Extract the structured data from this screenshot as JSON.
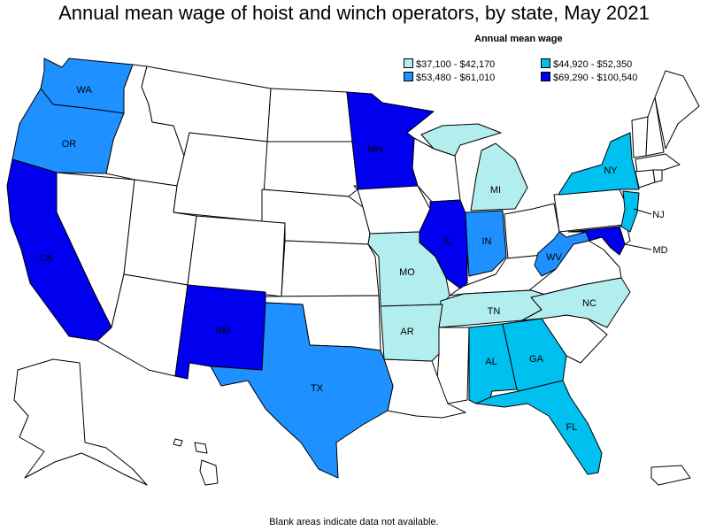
{
  "title": "Annual mean wage of hoist and winch operators, by state, May 2021",
  "legend": {
    "title": "Annual mean wage",
    "items": [
      {
        "label": "$37,100 - $42,170",
        "color": "#b2eeee"
      },
      {
        "label": "$44,920 - $52,350",
        "color": "#00c0ef"
      },
      {
        "label": "$53,480 - $61,010",
        "color": "#1e90ff"
      },
      {
        "label": "$69,290 - $100,540",
        "color": "#0000ee"
      }
    ]
  },
  "footnote": "Blank areas indicate data not available.",
  "colors": {
    "no_data": "#ffffff",
    "tier1": "#b2eeee",
    "tier2": "#00c0ef",
    "tier3": "#1e90ff",
    "tier4": "#0000ee"
  },
  "states": {
    "WA": {
      "label": "WA",
      "tier": 3
    },
    "OR": {
      "label": "OR",
      "tier": 3
    },
    "CA": {
      "label": "CA",
      "tier": 4
    },
    "MN": {
      "label": "MN",
      "tier": 4
    },
    "MI": {
      "label": "MI",
      "tier": 1
    },
    "NY": {
      "label": "NY",
      "tier": 2
    },
    "NJ": {
      "label": "NJ",
      "tier": 2
    },
    "IL": {
      "label": "IL",
      "tier": 4
    },
    "IN": {
      "label": "IN",
      "tier": 3
    },
    "WV": {
      "label": "WV",
      "tier": 3
    },
    "MD": {
      "label": "MD",
      "tier": 4
    },
    "MO": {
      "label": "MO",
      "tier": 1
    },
    "NM": {
      "label": "NM",
      "tier": 4
    },
    "TN": {
      "label": "TN",
      "tier": 1
    },
    "NC": {
      "label": "NC",
      "tier": 1
    },
    "AR": {
      "label": "AR",
      "tier": 1
    },
    "AL": {
      "label": "AL",
      "tier": 2
    },
    "GA": {
      "label": "GA",
      "tier": 2
    },
    "TX": {
      "label": "TX",
      "tier": 3
    },
    "FL": {
      "label": "FL",
      "tier": 2
    }
  }
}
